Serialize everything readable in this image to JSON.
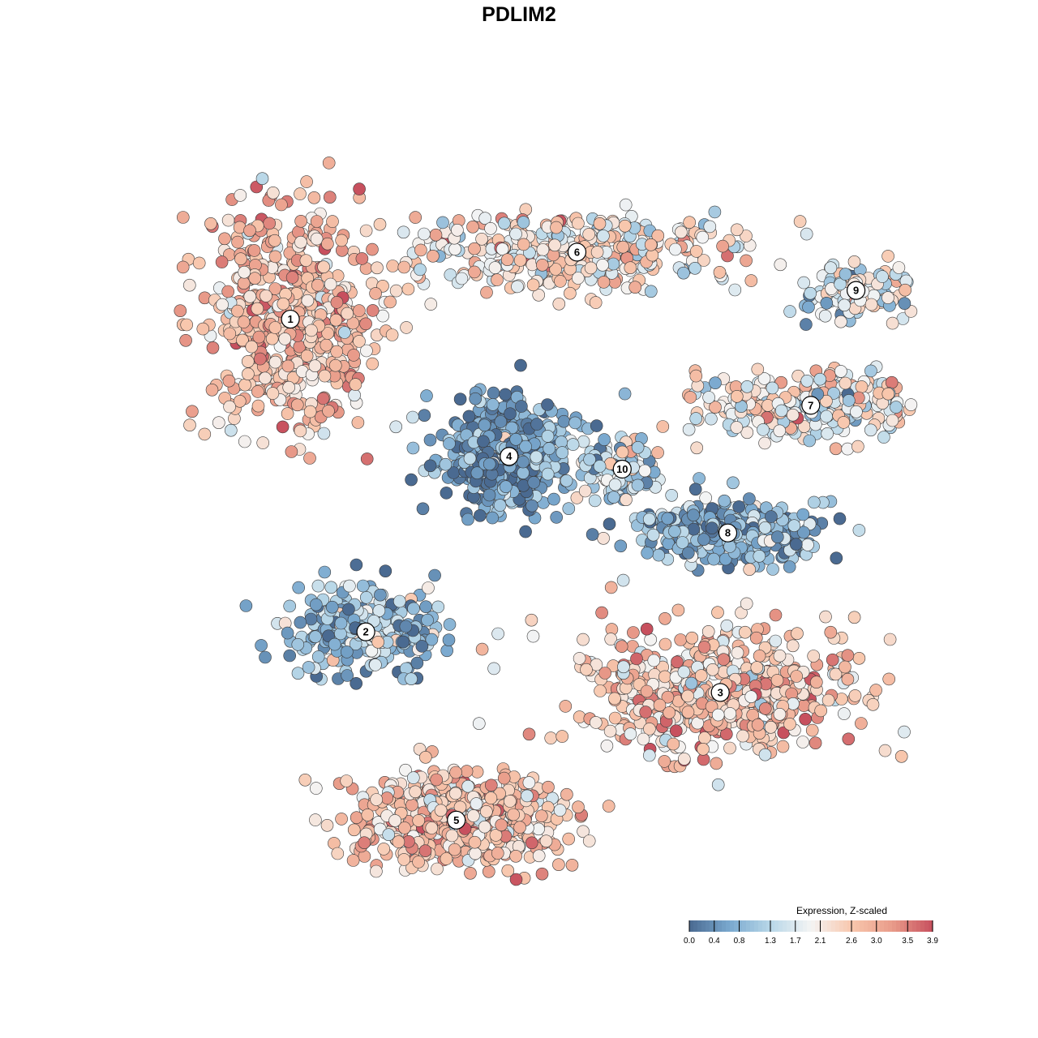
{
  "chart_data": {
    "type": "scatter",
    "title": "PDLIM2",
    "xlabel": "",
    "ylabel": "",
    "grid": false,
    "legend_placement": "bottom-right",
    "colorbar": {
      "title": "Expression, Z-scaled",
      "range": [
        0.0,
        3.9
      ],
      "ticks": [
        "0.0",
        "0.4",
        "0.8",
        "1.3",
        "1.7",
        "2.1",
        "2.6",
        "3.0",
        "3.5",
        "3.9"
      ],
      "colors": [
        "#4a6a91",
        "#7aa9cf",
        "#b8d7e8",
        "#f4f4f4",
        "#f8c7ad",
        "#e99c8a",
        "#c7505e"
      ]
    },
    "clusters": [
      {
        "label": "1",
        "x": 0.17,
        "y": 0.735,
        "spread_x": 0.14,
        "spread_y": 0.2,
        "n": 560,
        "mean_expr": 2.7,
        "sd_expr": 0.55
      },
      {
        "label": "2",
        "x": 0.27,
        "y": 0.245,
        "spread_x": 0.13,
        "spread_y": 0.08,
        "n": 260,
        "mean_expr": 1.0,
        "sd_expr": 0.7
      },
      {
        "label": "3",
        "x": 0.74,
        "y": 0.15,
        "spread_x": 0.22,
        "spread_y": 0.12,
        "n": 560,
        "mean_expr": 2.6,
        "sd_expr": 0.6
      },
      {
        "label": "4",
        "x": 0.46,
        "y": 0.52,
        "spread_x": 0.1,
        "spread_y": 0.1,
        "n": 480,
        "mean_expr": 0.6,
        "sd_expr": 0.55
      },
      {
        "label": "5",
        "x": 0.39,
        "y": -0.05,
        "spread_x": 0.17,
        "spread_y": 0.1,
        "n": 480,
        "mean_expr": 2.6,
        "sd_expr": 0.55
      },
      {
        "label": "6",
        "x": 0.55,
        "y": 0.84,
        "spread_x": 0.24,
        "spread_y": 0.07,
        "n": 420,
        "mean_expr": 2.2,
        "sd_expr": 0.65
      },
      {
        "label": "7",
        "x": 0.86,
        "y": 0.6,
        "spread_x": 0.2,
        "spread_y": 0.06,
        "n": 260,
        "mean_expr": 2.0,
        "sd_expr": 0.7
      },
      {
        "label": "8",
        "x": 0.75,
        "y": 0.4,
        "spread_x": 0.14,
        "spread_y": 0.06,
        "n": 300,
        "mean_expr": 0.8,
        "sd_expr": 0.6
      },
      {
        "label": "9",
        "x": 0.92,
        "y": 0.78,
        "spread_x": 0.1,
        "spread_y": 0.05,
        "n": 130,
        "mean_expr": 1.8,
        "sd_expr": 0.7
      },
      {
        "label": "10",
        "x": 0.61,
        "y": 0.5,
        "spread_x": 0.06,
        "spread_y": 0.06,
        "n": 110,
        "mean_expr": 1.3,
        "sd_expr": 0.7
      }
    ]
  }
}
